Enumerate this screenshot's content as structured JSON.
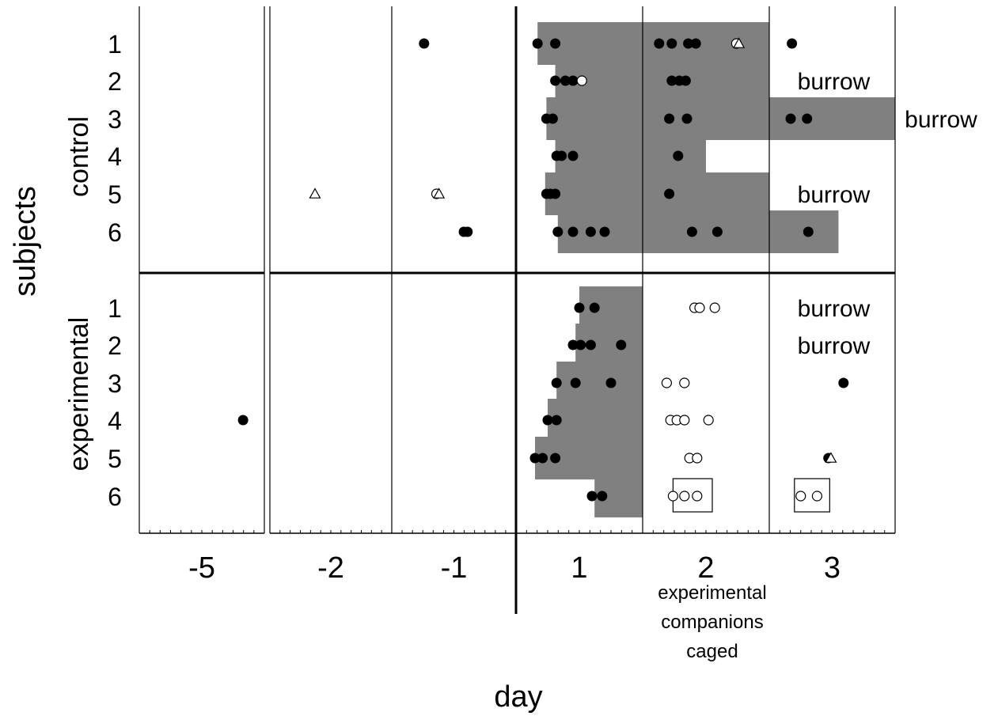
{
  "chart_data": {
    "type": "scatter",
    "title": "",
    "xlabel": "day",
    "ylabel": "subjects",
    "day_columns": [
      "-5",
      "-2",
      "-1",
      "1",
      "2",
      "3"
    ],
    "groups": [
      {
        "label": "control",
        "rows": [
          "1",
          "2",
          "3",
          "4",
          "5",
          "6"
        ]
      },
      {
        "label": "experimental",
        "rows": [
          "1",
          "2",
          "3",
          "4",
          "5",
          "6"
        ]
      }
    ],
    "annotations": {
      "burrow": "burrow",
      "caged_note": [
        "experimental",
        "companions",
        "caged"
      ]
    },
    "colors": {
      "shade": "#808080",
      "ink": "#000000",
      "open": "#ffffff"
    },
    "shading": [
      {
        "group": 0,
        "row": 1,
        "segments": [
          {
            "day": 1,
            "from": 0.17,
            "to": 1
          },
          {
            "day": 2,
            "from": 0,
            "to": 1
          }
        ]
      },
      {
        "group": 0,
        "row": 2,
        "segments": [
          {
            "day": 1,
            "from": 0.31,
            "to": 1
          },
          {
            "day": 2,
            "from": 0,
            "to": 1
          }
        ]
      },
      {
        "group": 0,
        "row": 3,
        "segments": [
          {
            "day": 1,
            "from": 0.24,
            "to": 1
          },
          {
            "day": 2,
            "from": 0,
            "to": 1
          },
          {
            "day": 3,
            "from": 0,
            "to": 1
          }
        ]
      },
      {
        "group": 0,
        "row": 4,
        "segments": [
          {
            "day": 1,
            "from": 0.31,
            "to": 1
          },
          {
            "day": 2,
            "from": 0,
            "to": 0.5
          }
        ]
      },
      {
        "group": 0,
        "row": 5,
        "segments": [
          {
            "day": 1,
            "from": 0.23,
            "to": 1
          },
          {
            "day": 2,
            "from": 0,
            "to": 1
          }
        ]
      },
      {
        "group": 0,
        "row": 6,
        "segments": [
          {
            "day": 1,
            "from": 0.33,
            "to": 1
          },
          {
            "day": 2,
            "from": 0,
            "to": 1
          },
          {
            "day": 3,
            "from": 0,
            "to": 0.55
          }
        ]
      },
      {
        "group": 1,
        "row": 1,
        "segments": [
          {
            "day": 1,
            "from": 0.5,
            "to": 1
          }
        ]
      },
      {
        "group": 1,
        "row": 2,
        "segments": [
          {
            "day": 1,
            "from": 0.47,
            "to": 1
          }
        ]
      },
      {
        "group": 1,
        "row": 3,
        "segments": [
          {
            "day": 1,
            "from": 0.32,
            "to": 1
          }
        ]
      },
      {
        "group": 1,
        "row": 4,
        "segments": [
          {
            "day": 1,
            "from": 0.25,
            "to": 1
          }
        ]
      },
      {
        "group": 1,
        "row": 5,
        "segments": [
          {
            "day": 1,
            "from": 0.15,
            "to": 1
          }
        ]
      },
      {
        "group": 1,
        "row": 6,
        "segments": [
          {
            "day": 1,
            "from": 0.62,
            "to": 1
          }
        ]
      }
    ],
    "burrow_labels": [
      {
        "group": 0,
        "row": 2,
        "day": 3,
        "where": "inside"
      },
      {
        "group": 0,
        "row": 3,
        "day": 3,
        "where": "outside"
      },
      {
        "group": 0,
        "row": 5,
        "day": 3,
        "where": "inside"
      },
      {
        "group": 1,
        "row": 1,
        "day": 3,
        "where": "inside"
      },
      {
        "group": 1,
        "row": 2,
        "day": 3,
        "where": "inside"
      }
    ],
    "boxes": [
      {
        "group": 1,
        "row": 6,
        "day": 2,
        "from": 0.24,
        "to": 0.55
      },
      {
        "group": 1,
        "row": 6,
        "day": 3,
        "from": 0.2,
        "to": 0.48
      }
    ],
    "events": [
      {
        "group": 0,
        "row": 1,
        "day": -1,
        "t": 0.26,
        "kind": "filled"
      },
      {
        "group": 0,
        "row": 1,
        "day": 1,
        "t": 0.17,
        "kind": "filled"
      },
      {
        "group": 0,
        "row": 1,
        "day": 1,
        "t": 0.31,
        "kind": "filled"
      },
      {
        "group": 0,
        "row": 1,
        "day": 2,
        "t": 0.13,
        "kind": "filled"
      },
      {
        "group": 0,
        "row": 1,
        "day": 2,
        "t": 0.23,
        "kind": "filled"
      },
      {
        "group": 0,
        "row": 1,
        "day": 2,
        "t": 0.36,
        "kind": "filled"
      },
      {
        "group": 0,
        "row": 1,
        "day": 2,
        "t": 0.42,
        "kind": "filled"
      },
      {
        "group": 0,
        "row": 1,
        "day": 2,
        "t": 0.74,
        "kind": "open"
      },
      {
        "group": 0,
        "row": 1,
        "day": 2,
        "t": 0.76,
        "kind": "triangle"
      },
      {
        "group": 0,
        "row": 1,
        "day": 3,
        "t": 0.18,
        "kind": "filled"
      },
      {
        "group": 0,
        "row": 2,
        "day": 1,
        "t": 0.31,
        "kind": "filled"
      },
      {
        "group": 0,
        "row": 2,
        "day": 1,
        "t": 0.39,
        "kind": "filled"
      },
      {
        "group": 0,
        "row": 2,
        "day": 1,
        "t": 0.45,
        "kind": "filled"
      },
      {
        "group": 0,
        "row": 2,
        "day": 1,
        "t": 0.52,
        "kind": "open"
      },
      {
        "group": 0,
        "row": 2,
        "day": 2,
        "t": 0.23,
        "kind": "filled"
      },
      {
        "group": 0,
        "row": 2,
        "day": 2,
        "t": 0.29,
        "kind": "filled"
      },
      {
        "group": 0,
        "row": 2,
        "day": 2,
        "t": 0.34,
        "kind": "filled"
      },
      {
        "group": 0,
        "row": 3,
        "day": 1,
        "t": 0.24,
        "kind": "filled"
      },
      {
        "group": 0,
        "row": 3,
        "day": 1,
        "t": 0.29,
        "kind": "filled"
      },
      {
        "group": 0,
        "row": 3,
        "day": 2,
        "t": 0.21,
        "kind": "filled"
      },
      {
        "group": 0,
        "row": 3,
        "day": 2,
        "t": 0.35,
        "kind": "filled"
      },
      {
        "group": 0,
        "row": 3,
        "day": 3,
        "t": 0.17,
        "kind": "filled"
      },
      {
        "group": 0,
        "row": 3,
        "day": 3,
        "t": 0.3,
        "kind": "filled"
      },
      {
        "group": 0,
        "row": 4,
        "day": 1,
        "t": 0.32,
        "kind": "filled"
      },
      {
        "group": 0,
        "row": 4,
        "day": 1,
        "t": 0.36,
        "kind": "filled"
      },
      {
        "group": 0,
        "row": 4,
        "day": 1,
        "t": 0.45,
        "kind": "filled"
      },
      {
        "group": 0,
        "row": 4,
        "day": 2,
        "t": 0.28,
        "kind": "filled"
      },
      {
        "group": 0,
        "row": 5,
        "day": -2,
        "t": 0.37,
        "kind": "triangle"
      },
      {
        "group": 0,
        "row": 5,
        "day": -1,
        "t": 0.36,
        "kind": "open"
      },
      {
        "group": 0,
        "row": 5,
        "day": -1,
        "t": 0.38,
        "kind": "triangle"
      },
      {
        "group": 0,
        "row": 5,
        "day": 1,
        "t": 0.24,
        "kind": "filled"
      },
      {
        "group": 0,
        "row": 5,
        "day": 1,
        "t": 0.27,
        "kind": "filled"
      },
      {
        "group": 0,
        "row": 5,
        "day": 1,
        "t": 0.31,
        "kind": "filled"
      },
      {
        "group": 0,
        "row": 5,
        "day": 2,
        "t": 0.21,
        "kind": "filled"
      },
      {
        "group": 0,
        "row": 6,
        "day": -1,
        "t": 0.58,
        "kind": "filled"
      },
      {
        "group": 0,
        "row": 6,
        "day": -1,
        "t": 0.61,
        "kind": "filled"
      },
      {
        "group": 0,
        "row": 6,
        "day": 1,
        "t": 0.33,
        "kind": "filled"
      },
      {
        "group": 0,
        "row": 6,
        "day": 1,
        "t": 0.45,
        "kind": "filled"
      },
      {
        "group": 0,
        "row": 6,
        "day": 1,
        "t": 0.59,
        "kind": "filled"
      },
      {
        "group": 0,
        "row": 6,
        "day": 1,
        "t": 0.7,
        "kind": "filled"
      },
      {
        "group": 0,
        "row": 6,
        "day": 2,
        "t": 0.39,
        "kind": "filled"
      },
      {
        "group": 0,
        "row": 6,
        "day": 2,
        "t": 0.59,
        "kind": "filled"
      },
      {
        "group": 0,
        "row": 6,
        "day": 3,
        "t": 0.31,
        "kind": "filled"
      },
      {
        "group": 1,
        "row": 1,
        "day": 1,
        "t": 0.5,
        "kind": "filled"
      },
      {
        "group": 1,
        "row": 1,
        "day": 1,
        "t": 0.62,
        "kind": "filled"
      },
      {
        "group": 1,
        "row": 1,
        "day": 2,
        "t": 0.41,
        "kind": "open"
      },
      {
        "group": 1,
        "row": 1,
        "day": 2,
        "t": 0.45,
        "kind": "open"
      },
      {
        "group": 1,
        "row": 1,
        "day": 2,
        "t": 0.57,
        "kind": "open"
      },
      {
        "group": 1,
        "row": 2,
        "day": 1,
        "t": 0.45,
        "kind": "filled"
      },
      {
        "group": 1,
        "row": 2,
        "day": 1,
        "t": 0.51,
        "kind": "filled"
      },
      {
        "group": 1,
        "row": 2,
        "day": 1,
        "t": 0.59,
        "kind": "filled"
      },
      {
        "group": 1,
        "row": 2,
        "day": 1,
        "t": 0.83,
        "kind": "filled"
      },
      {
        "group": 1,
        "row": 3,
        "day": 1,
        "t": 0.32,
        "kind": "filled"
      },
      {
        "group": 1,
        "row": 3,
        "day": 1,
        "t": 0.47,
        "kind": "filled"
      },
      {
        "group": 1,
        "row": 3,
        "day": 1,
        "t": 0.75,
        "kind": "filled"
      },
      {
        "group": 1,
        "row": 3,
        "day": 2,
        "t": 0.19,
        "kind": "open"
      },
      {
        "group": 1,
        "row": 3,
        "day": 2,
        "t": 0.33,
        "kind": "open"
      },
      {
        "group": 1,
        "row": 3,
        "day": 3,
        "t": 0.59,
        "kind": "filled"
      },
      {
        "group": 1,
        "row": 4,
        "day": -5,
        "t": 0.83,
        "kind": "filled"
      },
      {
        "group": 1,
        "row": 4,
        "day": 1,
        "t": 0.25,
        "kind": "filled"
      },
      {
        "group": 1,
        "row": 4,
        "day": 1,
        "t": 0.32,
        "kind": "filled"
      },
      {
        "group": 1,
        "row": 4,
        "day": 2,
        "t": 0.22,
        "kind": "open"
      },
      {
        "group": 1,
        "row": 4,
        "day": 2,
        "t": 0.27,
        "kind": "open"
      },
      {
        "group": 1,
        "row": 4,
        "day": 2,
        "t": 0.33,
        "kind": "open"
      },
      {
        "group": 1,
        "row": 4,
        "day": 2,
        "t": 0.52,
        "kind": "open"
      },
      {
        "group": 1,
        "row": 5,
        "day": 1,
        "t": 0.15,
        "kind": "filled"
      },
      {
        "group": 1,
        "row": 5,
        "day": 1,
        "t": 0.21,
        "kind": "filled"
      },
      {
        "group": 1,
        "row": 5,
        "day": 1,
        "t": 0.31,
        "kind": "filled"
      },
      {
        "group": 1,
        "row": 5,
        "day": 2,
        "t": 0.37,
        "kind": "open"
      },
      {
        "group": 1,
        "row": 5,
        "day": 2,
        "t": 0.43,
        "kind": "open"
      },
      {
        "group": 1,
        "row": 5,
        "day": 3,
        "t": 0.47,
        "kind": "filled"
      },
      {
        "group": 1,
        "row": 5,
        "day": 3,
        "t": 0.49,
        "kind": "triangle"
      },
      {
        "group": 1,
        "row": 6,
        "day": 1,
        "t": 0.6,
        "kind": "filled"
      },
      {
        "group": 1,
        "row": 6,
        "day": 1,
        "t": 0.68,
        "kind": "filled"
      },
      {
        "group": 1,
        "row": 6,
        "day": 2,
        "t": 0.24,
        "kind": "open"
      },
      {
        "group": 1,
        "row": 6,
        "day": 2,
        "t": 0.33,
        "kind": "open"
      },
      {
        "group": 1,
        "row": 6,
        "day": 2,
        "t": 0.43,
        "kind": "open"
      },
      {
        "group": 1,
        "row": 6,
        "day": 3,
        "t": 0.25,
        "kind": "open"
      },
      {
        "group": 1,
        "row": 6,
        "day": 3,
        "t": 0.38,
        "kind": "open"
      }
    ]
  }
}
